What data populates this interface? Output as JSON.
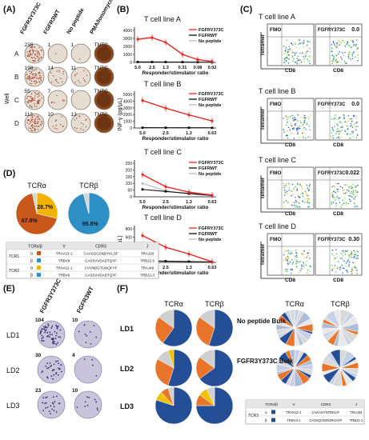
{
  "panels": {
    "A": "(A)",
    "B": "(B)",
    "C": "(C)",
    "D": "(D)",
    "E": "(E)",
    "F": "(F)"
  },
  "panelA": {
    "row_axis": "Well",
    "col_headers": [
      "FGFR3Y373C",
      "FGFR3WT",
      "No peptide",
      "PMA/Ionomycin"
    ],
    "rows": [
      {
        "label": "A",
        "counts": [
          "238",
          "1",
          "1",
          "TNTC"
        ]
      },
      {
        "label": "B",
        "counts": [
          "198",
          "14",
          "11",
          "TNTC"
        ]
      },
      {
        "label": "C",
        "counts": [
          "55",
          "7",
          "0",
          "TNTC"
        ]
      },
      {
        "label": "D",
        "counts": [
          "113",
          "10",
          "13",
          "TNTC"
        ]
      }
    ]
  },
  "panelB": {
    "ylabel": "INF-γ (pg/μL)",
    "xlabel": "Responder/stimulator ratio",
    "legend": [
      "FGFRY373C",
      "FGFRWT",
      "No peptide"
    ],
    "colors": [
      "#e8281e",
      "#111111",
      "#bbbbbb"
    ]
  },
  "chart_data": [
    {
      "type": "line",
      "title": "T cell line A",
      "categories": [
        "5.0",
        "2.5",
        "1.3",
        "0.31",
        "0.08",
        "0.02"
      ],
      "ylim": [
        0,
        4000
      ],
      "yticks": [
        "0",
        "1000",
        "2000",
        "3000",
        "4000"
      ],
      "series": [
        {
          "name": "FGFRY373C",
          "values": [
            2900,
            3100,
            2500,
            1000,
            350,
            120
          ]
        },
        {
          "name": "FGFRWT",
          "values": [
            60,
            55,
            50,
            40,
            30,
            20
          ]
        },
        {
          "name": "No peptide",
          "values": [
            50,
            45,
            40,
            35,
            25,
            20
          ]
        }
      ]
    },
    {
      "type": "line",
      "title": "T cell line B",
      "categories": [
        "5.0",
        "2.5",
        "1.3",
        "0.63"
      ],
      "ylim": [
        0,
        5000
      ],
      "yticks": [
        "0",
        "1000",
        "2000",
        "3000",
        "4000",
        "5000"
      ],
      "series": [
        {
          "name": "FGFRY373C",
          "values": [
            4100,
            2950,
            1950,
            1050
          ]
        },
        {
          "name": "FGFRWT",
          "values": [
            50,
            45,
            40,
            30
          ]
        },
        {
          "name": "No peptide",
          "values": [
            40,
            35,
            30,
            25
          ]
        }
      ]
    },
    {
      "type": "line",
      "title": "T cell line C",
      "categories": [
        "5.0",
        "2.5",
        "1.3",
        "0.63"
      ],
      "ylim": [
        0,
        250
      ],
      "yticks": [
        "0",
        "50",
        "100",
        "150",
        "200",
        "250"
      ],
      "series": [
        {
          "name": "FGFRY373C",
          "values": [
            165,
            75,
            35,
            12
          ]
        },
        {
          "name": "FGFRWT",
          "values": [
            55,
            40,
            25,
            10
          ]
        },
        {
          "name": "No peptide",
          "values": [
            100,
            45,
            20,
            8
          ]
        }
      ]
    },
    {
      "type": "line",
      "title": "T cell line D",
      "categories": [
        "5.0",
        "2.5",
        "1.3",
        "0.63"
      ],
      "ylim": [
        0,
        800
      ],
      "yticks": [
        "0",
        "200",
        "400",
        "600",
        "800"
      ],
      "series": [
        {
          "name": "FGFRY373C",
          "values": [
            640,
            360,
            200,
            15
          ]
        },
        {
          "name": "FGFRWT",
          "values": [
            40,
            30,
            20,
            10
          ]
        },
        {
          "name": "No peptide",
          "values": [
            35,
            25,
            20,
            10
          ]
        }
      ]
    },
    {
      "type": "pie",
      "title": "TCRα",
      "labels": [
        "28.7%",
        "67.8%",
        ""
      ],
      "values": [
        28.7,
        67.8,
        3.5
      ],
      "colors": [
        "#f2b200",
        "#c8581a",
        "#d6d6d6"
      ]
    },
    {
      "type": "pie",
      "title": "TCRβ",
      "labels": [
        "95.8%",
        ""
      ],
      "values": [
        95.8,
        4.2
      ],
      "colors": [
        "#2e8fc4",
        "#d6d6d6"
      ]
    }
  ],
  "panelC": {
    "xlabel": "CD8",
    "ylabel": "Tetramer",
    "lines": [
      {
        "title": "T cell line A",
        "left": "FMO",
        "right": "FGFRY373C",
        "value": "0.0"
      },
      {
        "title": "T cell line B",
        "left": "FMO",
        "right": "FGFRY373C",
        "value": "0.0"
      },
      {
        "title": "T cell line C",
        "left": "FMO",
        "right": "FGFRY373C",
        "value": "0.022"
      },
      {
        "title": "T cell line D",
        "left": "FMO",
        "right": "FGFRY373C",
        "value": "0.30"
      }
    ]
  },
  "tableD": {
    "headers": [
      "TCRα/β",
      "V",
      "CDR3",
      "J"
    ],
    "rows": [
      {
        "group": "TCR1",
        "chain": "α",
        "color": "#c8581a",
        "v": "TRAV13-1",
        "cdr3": "CAASGGSNDYKLSF",
        "j": "TRAJ20"
      },
      {
        "group": "",
        "chain": "β",
        "color": "#2e8fc4",
        "v": "TRBV9",
        "cdr3": "CASSVVDADTQYF",
        "j": "TRBJ2-3"
      },
      {
        "group": "TCR2",
        "chain": "α",
        "color": "#f2b200",
        "v": "TRAV12-1",
        "cdr3": "CVVNDGTGNQFYF",
        "j": "TRAJ49"
      },
      {
        "group": "",
        "chain": "β",
        "color": "#2e8fc4",
        "v": "TRBV9",
        "cdr3": "CASSVVDADTQYF",
        "j": "TRBJ2-3"
      }
    ]
  },
  "panelE": {
    "col_headers": [
      "FGFR3Y373C",
      "FGFR3WT"
    ],
    "rows": [
      {
        "label": "LD1",
        "counts": [
          "104",
          "10"
        ]
      },
      {
        "label": "LD2",
        "counts": [
          "30",
          "4"
        ]
      },
      {
        "label": "LD3",
        "counts": [
          "23",
          "10"
        ]
      }
    ]
  },
  "panelF": {
    "headers": [
      "TCRα",
      "TCRβ",
      "TCRα",
      "TCRβ"
    ],
    "rows": [
      "LD1",
      "LD2",
      "LD3"
    ],
    "bulk": [
      "No peptide Bulk",
      "FGFR3Y373C Bulk"
    ],
    "table": {
      "headers": [
        "TCRα/β",
        "V",
        "CDR3",
        "J"
      ],
      "group": "TCR3",
      "rows": [
        {
          "chain": "α",
          "color": "#1f4e9c",
          "v": "TRAV12-1",
          "cdr3": "CVAASYNTDKLIF",
          "j": "TRAJ34"
        },
        {
          "chain": "β",
          "color": "#1f4e9c",
          "v": "TRBV3-1",
          "cdr3": "CASSQVGRGRGAFF",
          "j": "TRBJ1-1"
        }
      ]
    }
  }
}
